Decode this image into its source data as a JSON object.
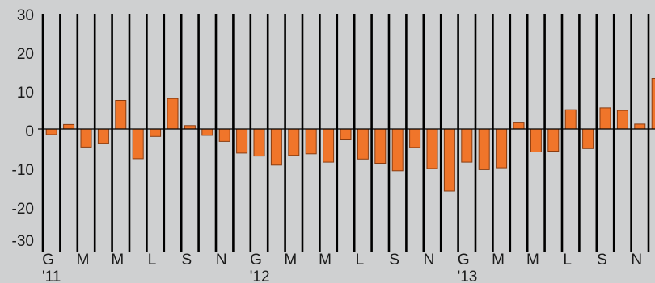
{
  "chart_data": {
    "type": "bar",
    "title": "",
    "xlabel": "",
    "ylabel": "",
    "ylim": [
      -30,
      30
    ],
    "y_ticks": [
      30,
      20,
      10,
      0,
      -10,
      -20,
      -30
    ],
    "grid": false,
    "values": [
      -1.5,
      1.2,
      -4.8,
      -3.8,
      7.6,
      -7.9,
      -2,
      8.1,
      0.9,
      -1.7,
      -3.3,
      -6.4,
      -7.2,
      -9.6,
      -7,
      -6.6,
      -8.8,
      -2.9,
      -8,
      -9.1,
      -11.1,
      -4.9,
      -10.5,
      -16.5,
      -8.8,
      -10.8,
      -10.3,
      1.8,
      -6.1,
      -5.9,
      5.1,
      -5.2,
      5.6,
      4.9,
      1.3,
      13.4
    ],
    "month_labels": [
      "G",
      "",
      "M",
      "",
      "M",
      "",
      "L",
      "",
      "S",
      "",
      "N",
      "",
      "G",
      "",
      "M",
      "",
      "M",
      "",
      "L",
      "",
      "S",
      "",
      "N",
      "",
      "G",
      "",
      "M",
      "",
      "M",
      "",
      "L",
      "",
      "S",
      "",
      "N",
      ""
    ],
    "year_labels": [
      "'11",
      "",
      "",
      "",
      "",
      "",
      "",
      "",
      "",
      "",
      "",
      "",
      "'12",
      "",
      "",
      "",
      "",
      "",
      "",
      "",
      "",
      "",
      "",
      "",
      "'13",
      "",
      "",
      "",
      "",
      "",
      "",
      "",
      "",
      "",
      "",
      ""
    ],
    "colors": {
      "bar_fill": "#f0752a",
      "bar_stroke": "#8a3c10",
      "divider": "#000000",
      "background": "#cfd0d1"
    }
  }
}
